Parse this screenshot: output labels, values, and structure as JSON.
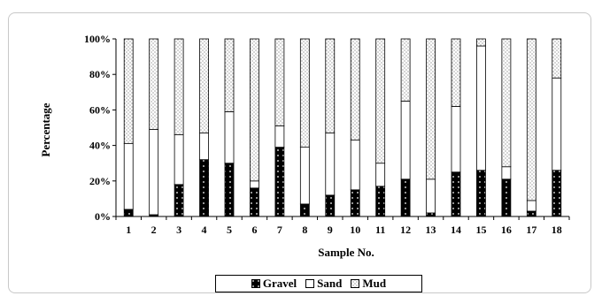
{
  "chart_data": {
    "type": "bar",
    "stacked": true,
    "percent": true,
    "title": "",
    "xlabel": "Sample No.",
    "ylabel": "Percentage",
    "ylim": [
      0,
      100
    ],
    "yticks": [
      "0%",
      "20%",
      "40%",
      "60%",
      "80%",
      "100%"
    ],
    "categories": [
      "1",
      "2",
      "3",
      "4",
      "5",
      "6",
      "7",
      "8",
      "9",
      "10",
      "11",
      "12",
      "13",
      "14",
      "15",
      "16",
      "17",
      "18"
    ],
    "series": [
      {
        "name": "Gravel",
        "color": "#000000",
        "pattern": "dots",
        "values": [
          4,
          1,
          18,
          32,
          30,
          16,
          39,
          7,
          12,
          15,
          17,
          21,
          2,
          25,
          26,
          21,
          3,
          26
        ]
      },
      {
        "name": "Sand",
        "color": "#ffffff",
        "pattern": "none",
        "values": [
          37,
          48,
          28,
          15,
          29,
          4,
          12,
          32,
          35,
          28,
          13,
          44,
          19,
          37,
          70,
          7,
          6,
          52
        ]
      },
      {
        "name": "Mud",
        "color": "#ffffff",
        "pattern": "stipple",
        "values": [
          59,
          51,
          54,
          53,
          41,
          80,
          49,
          61,
          53,
          57,
          70,
          35,
          79,
          38,
          4,
          72,
          91,
          22
        ]
      }
    ],
    "grid": false,
    "legend": "bottom"
  }
}
